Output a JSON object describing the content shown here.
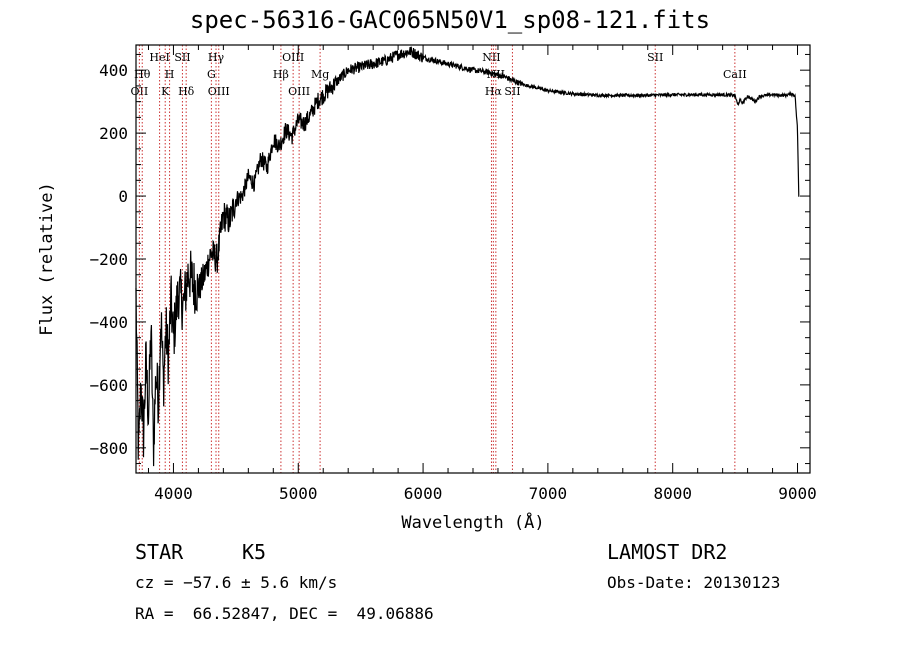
{
  "title": "spec-56316-GAC065N50V1_sp08-121.fits",
  "chart_data": {
    "type": "line",
    "xlabel": "Wavelength (Å)",
    "ylabel": "Flux (relative)",
    "xlim": [
      3700,
      9100
    ],
    "ylim": [
      -880,
      480
    ],
    "x_ticks": [
      4000,
      5000,
      6000,
      7000,
      8000,
      9000
    ],
    "x_tick_labels": [
      "4000",
      "5000",
      "6000",
      "7000",
      "8000",
      "9000"
    ],
    "y_ticks": [
      400,
      200,
      0,
      -200,
      -400,
      -600,
      -800
    ],
    "y_tick_labels": [
      "400",
      "200",
      "0",
      "−200",
      "−400",
      "−600",
      "−800"
    ],
    "series": [
      {
        "x": [
          3700,
          3720,
          3740,
          3760,
          3780,
          3800,
          3820,
          3840,
          3860,
          3880,
          3900,
          3920,
          3940,
          3960,
          3980,
          4000,
          4040,
          4080,
          4120,
          4160,
          4200,
          4250,
          4300,
          4350,
          4400,
          4450,
          4500,
          4550,
          4600,
          4650,
          4700,
          4750,
          4800,
          4850,
          4900,
          4950,
          5000,
          5050,
          5100,
          5150,
          5200,
          5300,
          5400,
          5500,
          5600,
          5700,
          5800,
          5900,
          6000,
          6100,
          6200,
          6300,
          6400,
          6500,
          6550,
          6600,
          6650,
          6700,
          6800,
          6900,
          7000,
          7100,
          7200,
          7400,
          7600,
          7800,
          8000,
          8200,
          8400,
          8500,
          8520,
          8540,
          8560,
          8600,
          8660,
          8700,
          8800,
          8900,
          8950,
          8980,
          9000,
          9010
        ],
        "y": [
          -320,
          -830,
          -600,
          -760,
          -520,
          -700,
          -420,
          -800,
          -560,
          -650,
          -380,
          -600,
          -420,
          -520,
          -330,
          -450,
          -300,
          -350,
          -240,
          -280,
          -300,
          -250,
          -180,
          -200,
          -60,
          -80,
          -10,
          0,
          60,
          40,
          120,
          90,
          180,
          160,
          210,
          190,
          240,
          230,
          260,
          300,
          320,
          360,
          400,
          410,
          420,
          430,
          450,
          460,
          440,
          430,
          420,
          410,
          400,
          395,
          390,
          385,
          380,
          370,
          355,
          345,
          335,
          330,
          325,
          320,
          320,
          320,
          322,
          322,
          322,
          320,
          290,
          305,
          295,
          318,
          300,
          318,
          322,
          320,
          325,
          320,
          210,
          0
        ]
      }
    ],
    "line_colors": {
      "spectrum": "#000000",
      "marker": "#cc3333",
      "axis": "#000000"
    },
    "line_markers": [
      {
        "x": 3727,
        "label": "OII",
        "row": 3
      },
      {
        "x": 3750,
        "label": "Hθ",
        "row": 2
      },
      {
        "x": 3889,
        "label": "HeI",
        "row": 1
      },
      {
        "x": 3934,
        "label": "K",
        "row": 3
      },
      {
        "x": 3969,
        "label": "H",
        "row": 2
      },
      {
        "x": 4072,
        "label": "SII",
        "row": 1
      },
      {
        "x": 4102,
        "label": "Hδ",
        "row": 3
      },
      {
        "x": 4304,
        "label": "G",
        "row": 2
      },
      {
        "x": 4341,
        "label": "Hγ",
        "row": 1
      },
      {
        "x": 4363,
        "label": "OIII",
        "row": 3
      },
      {
        "x": 4861,
        "label": "Hβ",
        "row": 2
      },
      {
        "x": 4959,
        "label": "OIII",
        "row": 1
      },
      {
        "x": 5007,
        "label": "OIII",
        "row": 3
      },
      {
        "x": 5175,
        "label": "Mg",
        "row": 2
      },
      {
        "x": 6548,
        "label": "NII",
        "row": 1
      },
      {
        "x": 6563,
        "label": "Hα",
        "row": 3
      },
      {
        "x": 6583,
        "label": "NII",
        "row": 2
      },
      {
        "x": 6716,
        "label": "SII",
        "row": 3
      },
      {
        "x": 7860,
        "label": "SII",
        "row": 1
      },
      {
        "x": 8498,
        "label": "CaII",
        "row": 2
      }
    ]
  },
  "info": {
    "class": "STAR",
    "subclass": "K5",
    "cz": "cz = −57.6 ± 5.6 km/s",
    "coords": "RA =  66.52847, DEC =  49.06886",
    "survey": "LAMOST DR2",
    "obs_date": "Obs-Date: 20130123"
  }
}
